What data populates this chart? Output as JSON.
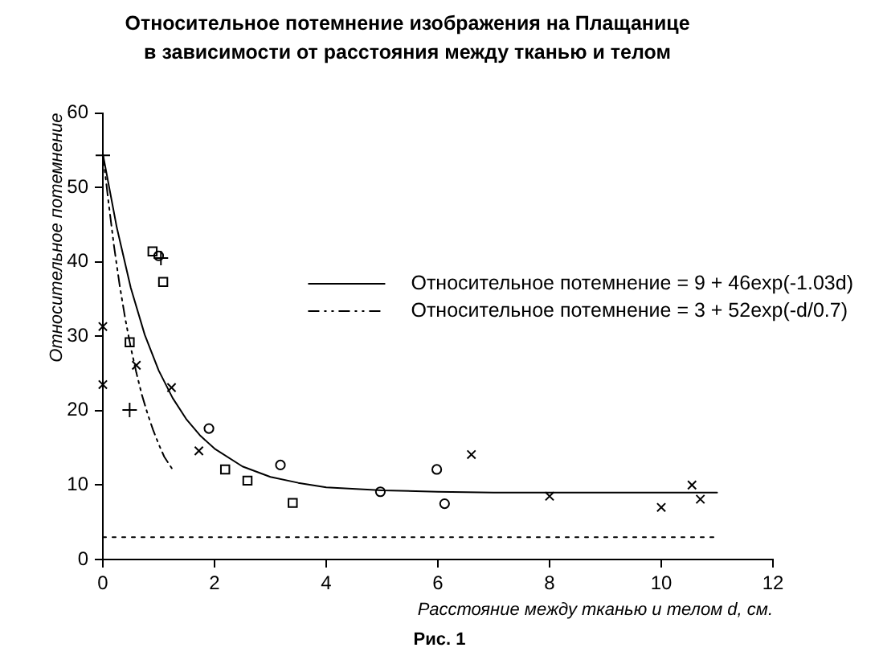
{
  "chart_data": {
    "type": "scatter",
    "title": "Относительное потемнение изображения на Плащанице\nв зависимости от расстояния между тканью и телом",
    "xlabel": "Расстояние между тканью и телом d, см.",
    "ylabel": "Относительное потемнение",
    "annotations": [
      "Рис. 1"
    ],
    "xlim": [
      0,
      12
    ],
    "xticks": [
      0,
      2,
      4,
      6,
      8,
      10,
      12
    ],
    "ylim": [
      0,
      60
    ],
    "yticks": [
      0,
      10,
      20,
      30,
      40,
      50,
      60
    ],
    "legend": "right",
    "series": [
      {
        "type": "line",
        "name": "Относительное потемнение = 9 + 46exp(-1.03d)",
        "color": "#000000",
        "line_style": "solid",
        "marker": "none",
        "x": [
          0,
          0.25,
          0.5,
          0.75,
          1,
          1.25,
          1.5,
          1.75,
          2,
          2.5,
          3,
          3.5,
          4,
          5,
          6,
          7,
          8,
          9,
          10,
          11
        ],
        "values": [
          54.5,
          44.6,
          36.5,
          30.2,
          25.4,
          21.7,
          18.8,
          16.6,
          14.9,
          12.5,
          11.1,
          10.3,
          9.7,
          9.3,
          9.1,
          9.0,
          9.0,
          9.0,
          9.0,
          9.0
        ]
      },
      {
        "type": "line",
        "name": "Относительное потемнение = 3 + 52exp(-d/0.7)",
        "color": "#000000",
        "line_style": "dashed",
        "marker": "none",
        "x": [
          0,
          0.1,
          0.2,
          0.3,
          0.4,
          0.5,
          0.6,
          0.7,
          0.8,
          0.9,
          1.0,
          1.1,
          1.24
        ],
        "values": [
          54.5,
          48.1,
          42.1,
          36.9,
          32.4,
          28.5,
          25.1,
          22.1,
          19.6,
          17.4,
          15.5,
          13.8,
          12.2
        ]
      },
      {
        "type": "line",
        "color": "#000000",
        "line_style": "dotted",
        "marker": "none",
        "x": [
          0,
          11
        ],
        "values": [
          3,
          3
        ]
      },
      {
        "type": "scatter",
        "color": "#000000",
        "marker": "cross",
        "x": [
          0,
          0,
          0.6,
          1.23,
          1.72,
          6.6,
          8,
          10,
          10.55,
          10.7
        ],
        "values": [
          31.3,
          23.5,
          26.1,
          23.1,
          14.6,
          14.1,
          8.5,
          7,
          10,
          8.1
        ]
      },
      {
        "type": "scatter",
        "color": "#000000",
        "marker": "square",
        "x": [
          0.48,
          0.89,
          1.08,
          2.19,
          2.59,
          3.4
        ],
        "values": [
          29.2,
          41.4,
          37.3,
          12.1,
          10.6,
          7.6
        ]
      },
      {
        "type": "scatter",
        "color": "#000000",
        "marker": "circle",
        "x": [
          1,
          1.9,
          3.18,
          4.97,
          5.98,
          6.12
        ],
        "values": [
          40.8,
          17.6,
          12.7,
          9.1,
          12.1,
          7.5
        ]
      },
      {
        "type": "scatter",
        "color": "#000000",
        "marker": "plus",
        "x": [
          0,
          0.48,
          1.04
        ],
        "values": [
          54.3,
          20.1,
          40.5
        ]
      }
    ]
  }
}
